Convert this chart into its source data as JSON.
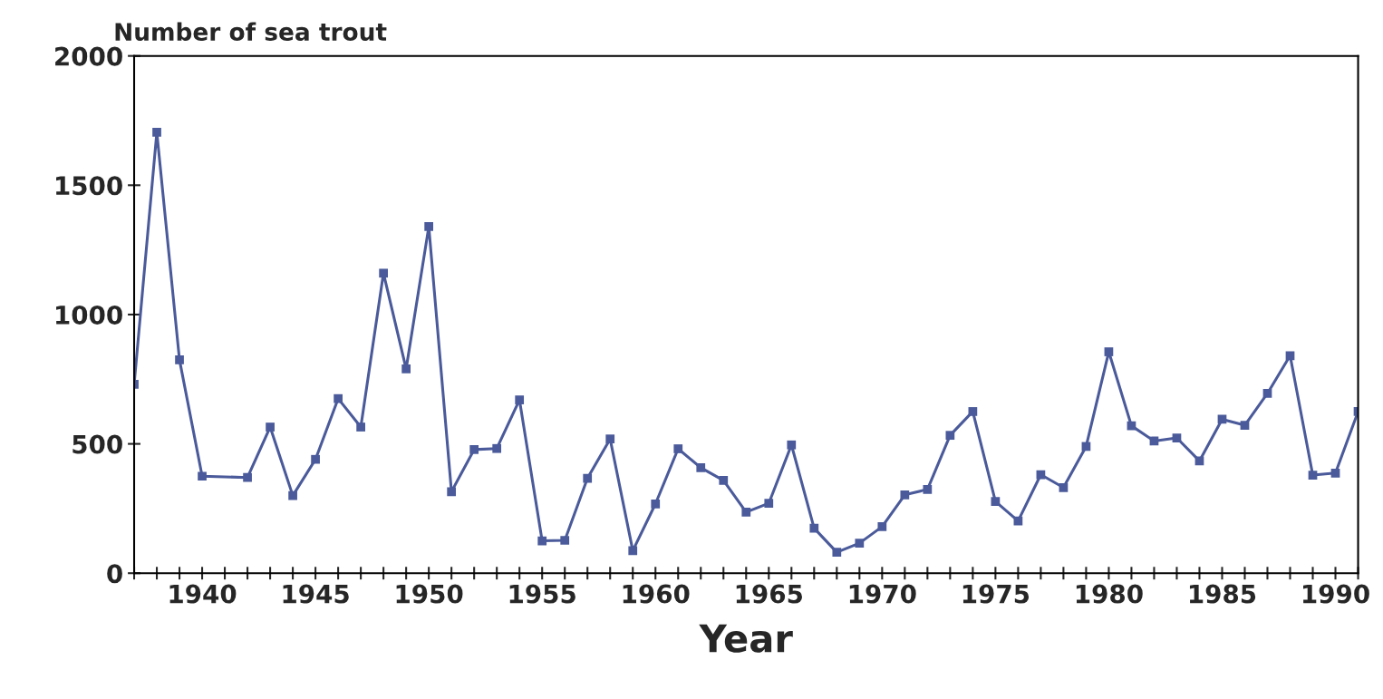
{
  "chart_data": {
    "type": "line",
    "ylabel": "Number of sea trout",
    "xlabel": "Year",
    "x": [
      1937,
      1938,
      1939,
      1940,
      1942,
      1943,
      1944,
      1945,
      1946,
      1947,
      1948,
      1949,
      1950,
      1951,
      1952,
      1953,
      1954,
      1955,
      1956,
      1957,
      1958,
      1959,
      1960,
      1961,
      1962,
      1963,
      1964,
      1965,
      1966,
      1967,
      1968,
      1969,
      1970,
      1971,
      1972,
      1973,
      1974,
      1975,
      1976,
      1977,
      1978,
      1979,
      1980,
      1981,
      1982,
      1983,
      1984,
      1985,
      1986,
      1987,
      1988,
      1989,
      1990,
      1991
    ],
    "series": [
      {
        "color": "#4a5a9a",
        "values": [
          730,
          1705,
          825,
          375,
          370,
          565,
          300,
          440,
          675,
          565,
          1160,
          790,
          1340,
          315,
          478,
          482,
          670,
          125,
          127,
          367,
          519,
          87,
          268,
          481,
          408,
          359,
          236,
          270,
          496,
          174,
          81,
          116,
          180,
          303,
          324,
          533,
          625,
          277,
          202,
          381,
          331,
          490,
          856,
          570,
          511,
          523,
          434,
          595,
          572,
          695,
          841,
          379,
          387,
          625
        ]
      }
    ],
    "xlim": [
      1937,
      1991
    ],
    "xticks": [
      {
        "value": 1937,
        "label": null
      },
      {
        "value": 1938,
        "label": null
      },
      {
        "value": 1939,
        "label": null
      },
      1940,
      {
        "value": 1941,
        "label": null
      },
      {
        "value": 1942,
        "label": null
      },
      {
        "value": 1943,
        "label": null
      },
      {
        "value": 1944,
        "label": null
      },
      1945,
      {
        "value": 1946,
        "label": null
      },
      {
        "value": 1947,
        "label": null
      },
      {
        "value": 1948,
        "label": null
      },
      {
        "value": 1949,
        "label": null
      },
      1950,
      {
        "value": 1951,
        "label": null
      },
      {
        "value": 1952,
        "label": null
      },
      {
        "value": 1953,
        "label": null
      },
      {
        "value": 1954,
        "label": null
      },
      1955,
      {
        "value": 1956,
        "label": null
      },
      {
        "value": 1957,
        "label": null
      },
      {
        "value": 1958,
        "label": null
      },
      {
        "value": 1959,
        "label": null
      },
      1960,
      {
        "value": 1961,
        "label": null
      },
      {
        "value": 1962,
        "label": null
      },
      {
        "value": 1963,
        "label": null
      },
      {
        "value": 1964,
        "label": null
      },
      1965,
      {
        "value": 1966,
        "label": null
      },
      {
        "value": 1967,
        "label": null
      },
      {
        "value": 1968,
        "label": null
      },
      {
        "value": 1969,
        "label": null
      },
      1970,
      {
        "value": 1971,
        "label": null
      },
      {
        "value": 1972,
        "label": null
      },
      {
        "value": 1973,
        "label": null
      },
      {
        "value": 1974,
        "label": null
      },
      1975,
      {
        "value": 1976,
        "label": null
      },
      {
        "value": 1977,
        "label": null
      },
      {
        "value": 1978,
        "label": null
      },
      {
        "value": 1979,
        "label": null
      },
      1980,
      {
        "value": 1981,
        "label": null
      },
      {
        "value": 1982,
        "label": null
      },
      {
        "value": 1983,
        "label": null
      },
      {
        "value": 1984,
        "label": null
      },
      1985,
      {
        "value": 1986,
        "label": null
      },
      {
        "value": 1987,
        "label": null
      },
      {
        "value": 1988,
        "label": null
      },
      {
        "value": 1989,
        "label": null
      },
      1990,
      {
        "value": 1991,
        "label": null
      }
    ],
    "ylim": [
      0,
      2000
    ],
    "yticks": [
      0,
      500,
      1000,
      1500,
      2000
    ],
    "grid": false,
    "legend": false,
    "marker": "square",
    "line_style": "solid"
  }
}
